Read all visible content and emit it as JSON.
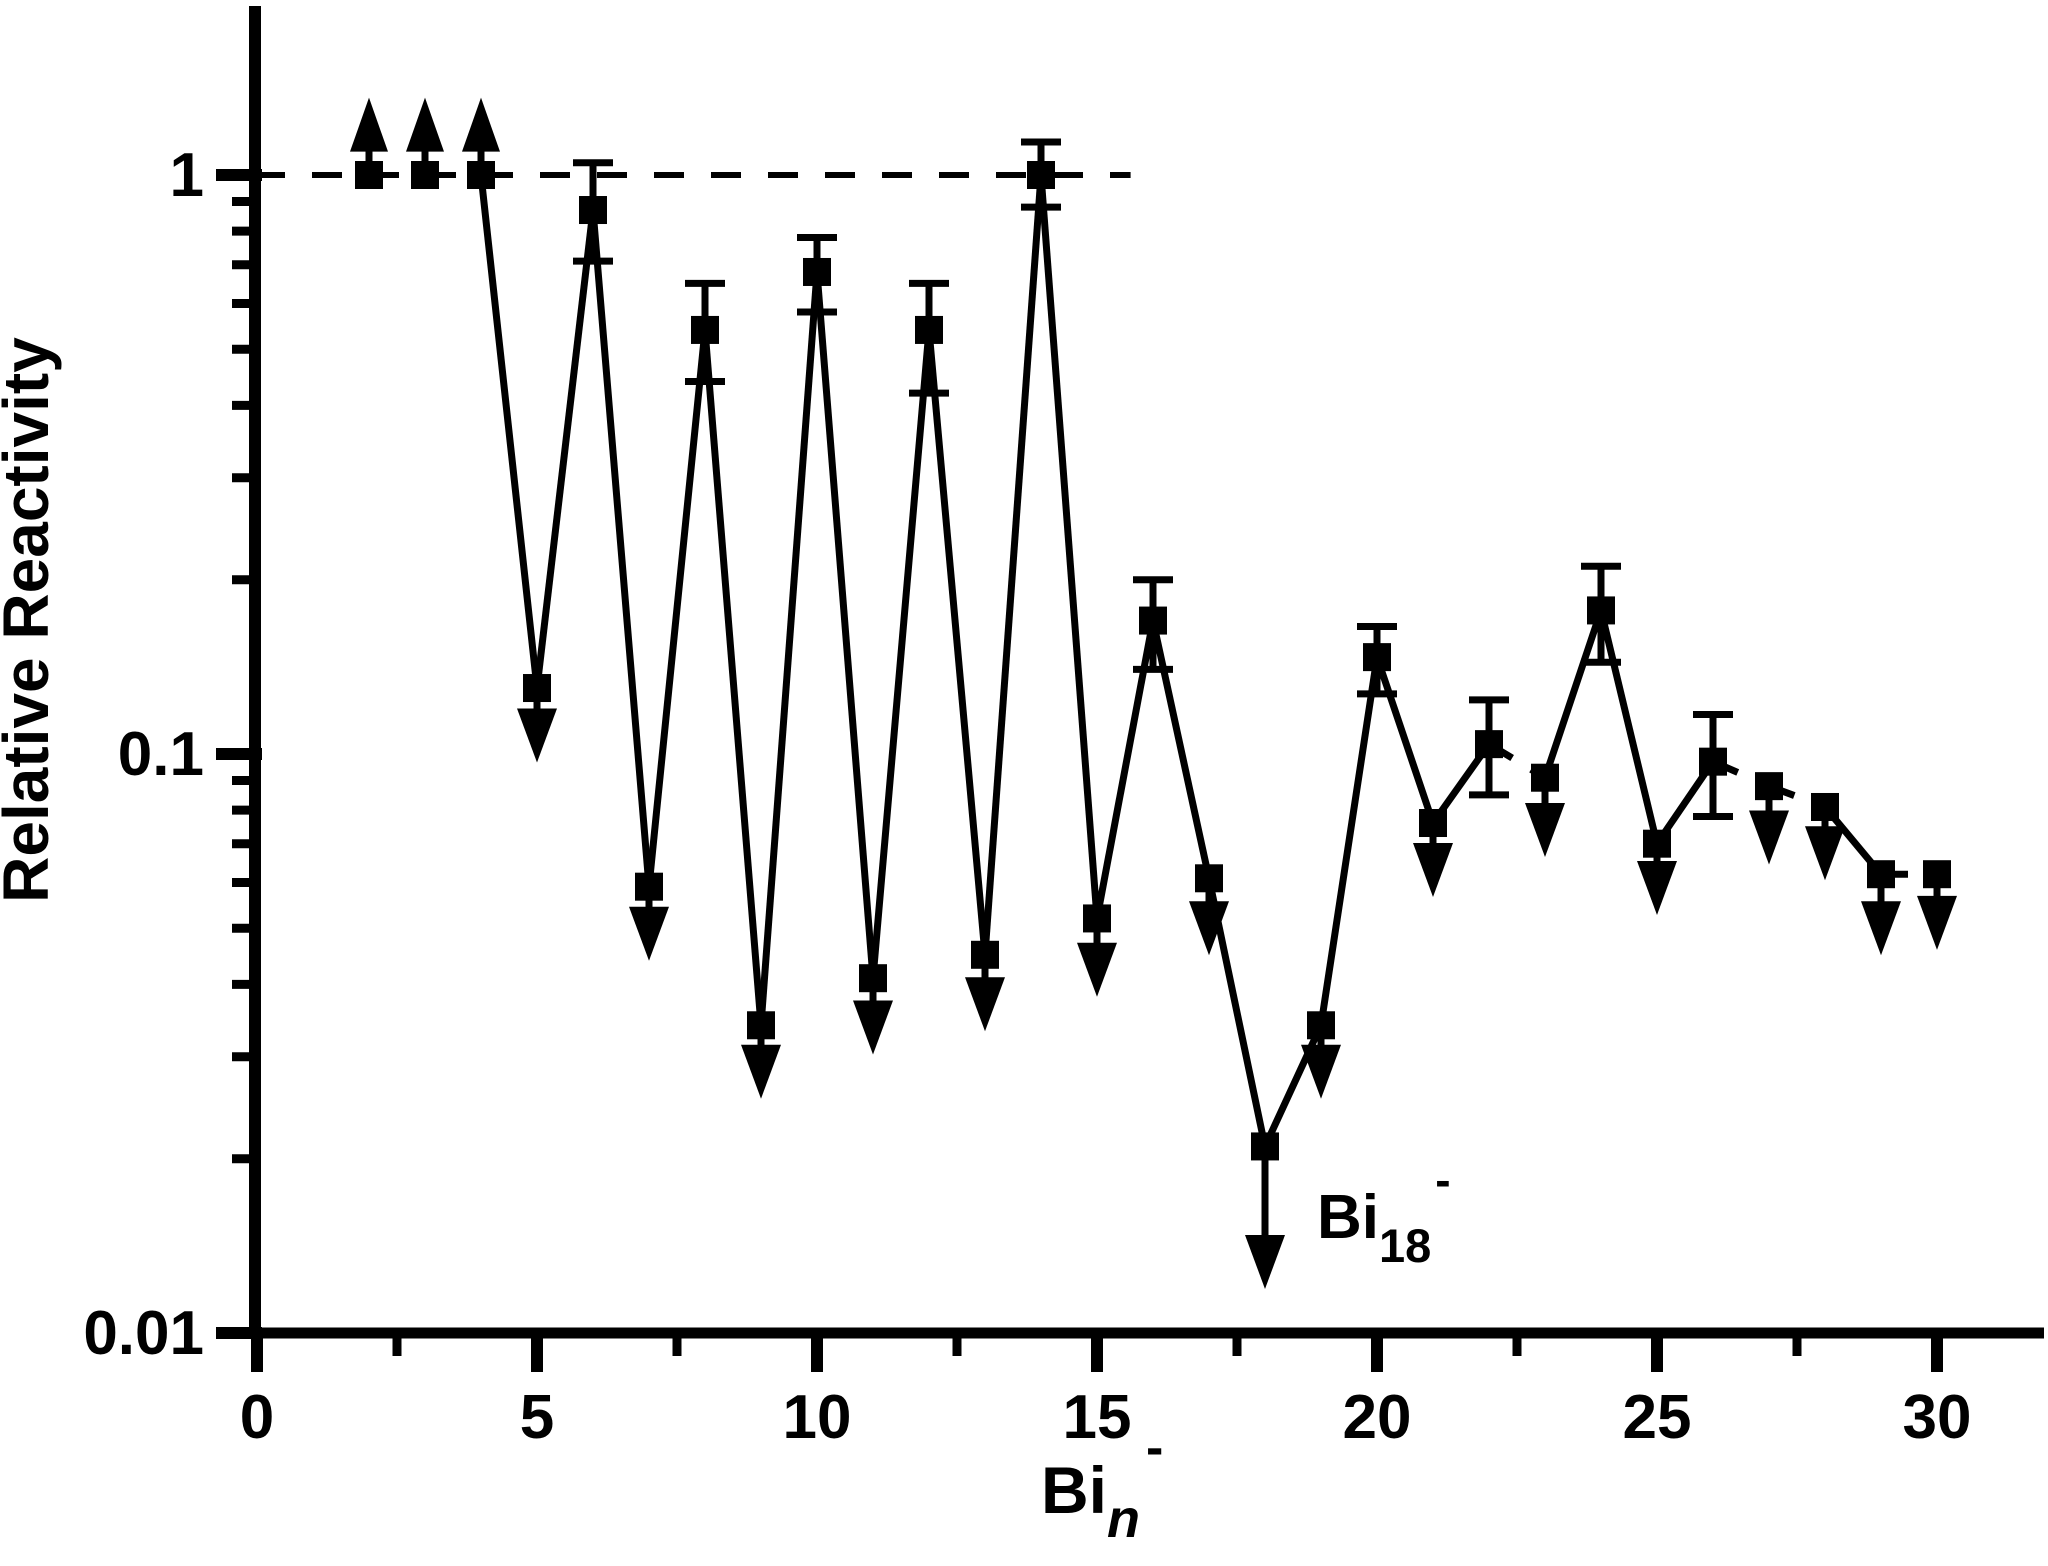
{
  "figure": {
    "background_color": "#ffffff",
    "foreground_color": "#000000"
  },
  "chart_data": {
    "type": "scatter",
    "title": "",
    "xlabel": {
      "base": "Bi",
      "sub": "n",
      "sup": "-"
    },
    "ylabel": "Relative Reactivity",
    "x_axis": {
      "major_ticks": [
        0,
        5,
        10,
        15,
        20,
        25,
        30
      ],
      "major_tick_labels": [
        "0",
        "5",
        "10",
        "15",
        "20",
        "25",
        "30"
      ],
      "minor_ticks": [
        2.5,
        7.5,
        12.5,
        17.5,
        22.5,
        27.5
      ],
      "range": [
        0,
        31.9
      ]
    },
    "y_axis": {
      "scale": "log",
      "major_ticks": [
        1,
        0.1,
        0.01
      ],
      "major_tick_labels": [
        "1",
        "0.1",
        "0.01"
      ],
      "range": [
        0.01,
        1.95
      ]
    },
    "grid": false,
    "legend": null,
    "reference_line": {
      "value": 1,
      "style": "dashed",
      "x_start": 0,
      "x_end": 15.6
    },
    "annotation": {
      "base": "Bi",
      "sub": "18",
      "sup": "-",
      "x": 19.0,
      "y": 0.0146
    },
    "points": [
      {
        "n": 2,
        "value": 1.0,
        "limit": "lower",
        "arrow_to": 1.36,
        "link": "none"
      },
      {
        "n": 3,
        "value": 1.0,
        "limit": "lower",
        "arrow_to": 1.36,
        "link": "none"
      },
      {
        "n": 4,
        "value": 1.0,
        "limit": "lower",
        "arrow_to": 1.36,
        "link": "solid"
      },
      {
        "n": 5,
        "value": 0.13,
        "limit": "upper",
        "arrow_to": 0.099,
        "link": "solid"
      },
      {
        "n": 6,
        "value": 0.87,
        "err_hi": 1.05,
        "err_lo": 0.71,
        "link": "solid"
      },
      {
        "n": 7,
        "value": 0.059,
        "limit": "upper",
        "arrow_to": 0.045,
        "link": "solid"
      },
      {
        "n": 8,
        "value": 0.54,
        "err_hi": 0.65,
        "err_lo": 0.44,
        "link": "solid"
      },
      {
        "n": 9,
        "value": 0.034,
        "limit": "upper",
        "arrow_to": 0.026,
        "link": "solid"
      },
      {
        "n": 10,
        "value": 0.68,
        "err_hi": 0.78,
        "err_lo": 0.58,
        "link": "solid"
      },
      {
        "n": 11,
        "value": 0.041,
        "limit": "upper",
        "arrow_to": 0.031,
        "link": "solid"
      },
      {
        "n": 12,
        "value": 0.54,
        "err_hi": 0.65,
        "err_lo": 0.42,
        "link": "solid"
      },
      {
        "n": 13,
        "value": 0.045,
        "limit": "upper",
        "arrow_to": 0.034,
        "link": "solid"
      },
      {
        "n": 14,
        "value": 1.0,
        "err_hi": 1.14,
        "err_lo": 0.88,
        "link": "solid"
      },
      {
        "n": 15,
        "value": 0.052,
        "limit": "upper",
        "arrow_to": 0.039,
        "link": "solid"
      },
      {
        "n": 16,
        "value": 0.17,
        "err_hi": 0.2,
        "err_lo": 0.14,
        "link": "solid"
      },
      {
        "n": 17,
        "value": 0.061,
        "limit": "upper",
        "arrow_to": 0.046,
        "link": "solid"
      },
      {
        "n": 18,
        "value": 0.021,
        "limit": "upper",
        "arrow_to": 0.0122,
        "link": "solid"
      },
      {
        "n": 19,
        "value": 0.034,
        "limit": "upper",
        "arrow_to": 0.026,
        "link": "solid"
      },
      {
        "n": 20,
        "value": 0.147,
        "err_hi": 0.166,
        "err_lo": 0.127,
        "link": "solid"
      },
      {
        "n": 21,
        "value": 0.076,
        "limit": "upper",
        "arrow_to": 0.058,
        "link": "solid"
      },
      {
        "n": 22,
        "value": 0.104,
        "err_hi": 0.124,
        "err_lo": 0.085,
        "link": "dashed"
      },
      {
        "n": 23,
        "value": 0.091,
        "limit": "upper",
        "arrow_to": 0.068,
        "link": "solid"
      },
      {
        "n": 24,
        "value": 0.177,
        "err_hi": 0.211,
        "err_lo": 0.144,
        "link": "solid"
      },
      {
        "n": 25,
        "value": 0.07,
        "limit": "upper",
        "arrow_to": 0.054,
        "link": "solid"
      },
      {
        "n": 26,
        "value": 0.097,
        "err_hi": 0.117,
        "err_lo": 0.078,
        "link": "dashed"
      },
      {
        "n": 27,
        "value": 0.088,
        "limit": "upper",
        "arrow_to": 0.066,
        "link": "dashed"
      },
      {
        "n": 28,
        "value": 0.081,
        "limit": "upper",
        "arrow_to": 0.062,
        "link": "solid"
      },
      {
        "n": 29,
        "value": 0.062,
        "limit": "upper",
        "arrow_to": 0.046,
        "link": "dashed"
      },
      {
        "n": 30,
        "value": 0.062,
        "limit": "upper",
        "arrow_to": 0.047,
        "link": "none"
      }
    ]
  }
}
